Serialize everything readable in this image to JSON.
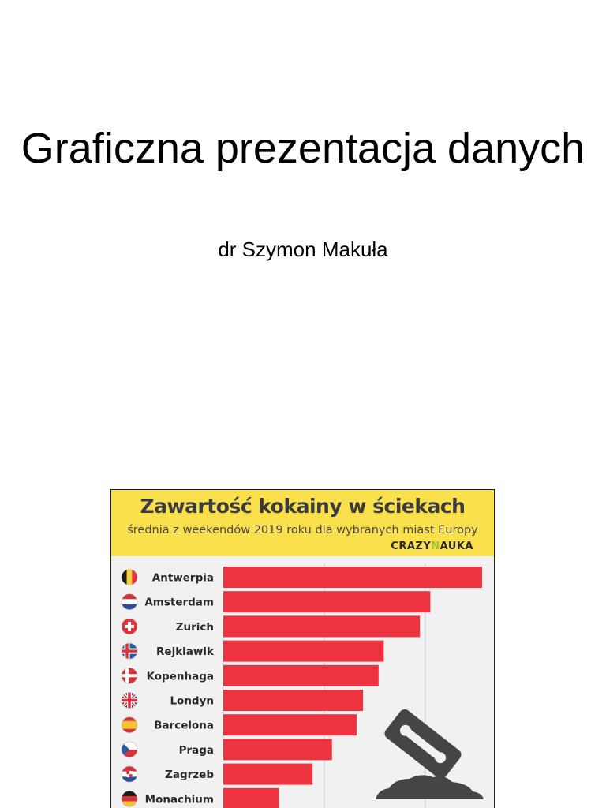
{
  "slide": {
    "title": "Graficzna prezentacja danych",
    "subtitle": "dr Szymon Makuła"
  },
  "infographic": {
    "brand_prefix": "CRAZY",
    "brand_accent": "N",
    "brand_suffix": "AUKA",
    "colors": {
      "header_bg": "#fbe04e",
      "bar": "#ee3340",
      "panel_bg": "#f1f1f1",
      "brand_accent": "#9bc43a"
    }
  },
  "chart_data": {
    "type": "bar",
    "orientation": "horizontal",
    "title": "Zawartość kokainy w ściekach",
    "subtitle": "średnia z weekendów 2019 roku dla wybranych miast Europy",
    "categories": [
      "Antwerpia",
      "Amsterdam",
      "Zurich",
      "Rejkiawik",
      "Kopenhaga",
      "Londyn",
      "Barcelona",
      "Praga",
      "Zagrzeb",
      "Monachium"
    ],
    "flags": [
      "belgium",
      "netherlands",
      "switzerland",
      "iceland",
      "denmark",
      "united-kingdom",
      "spain",
      "czechia",
      "croatia",
      "germany"
    ],
    "values": [
      1000,
      800,
      760,
      620,
      600,
      540,
      515,
      420,
      345,
      215
    ],
    "xlim": [
      0,
      1000
    ],
    "grid": true,
    "legend": "none",
    "decoration": "razor-blade-icon"
  }
}
